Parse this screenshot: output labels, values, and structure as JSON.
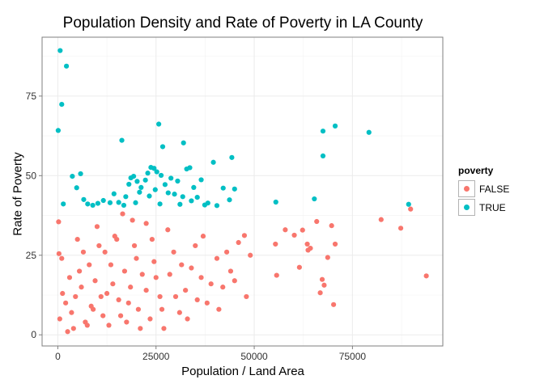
{
  "chart_data": {
    "type": "scatter",
    "title": "Population Density and Rate of Poverty in LA County",
    "xlabel": "Population / Land Area",
    "ylabel": "Rate of Poverty",
    "xlim": [
      -4000,
      98000
    ],
    "ylim": [
      -3.5,
      93.5
    ],
    "x_ticks": [
      0,
      25000,
      50000,
      75000
    ],
    "x_tick_labels": [
      "0",
      "25000",
      "50000",
      "75000"
    ],
    "y_ticks": [
      0,
      25,
      50,
      75
    ],
    "y_tick_labels": [
      "0",
      "25",
      "50",
      "75"
    ],
    "grid": true,
    "legend": {
      "title": "poverty",
      "position": "right"
    },
    "series": [
      {
        "name": "FALSE",
        "color": "#F8766D",
        "points": [
          [
            93800,
            18.5
          ],
          [
            89800,
            39.5
          ],
          [
            87300,
            33.5
          ],
          [
            82300,
            36.2
          ],
          [
            70600,
            28.5
          ],
          [
            70200,
            9.5
          ],
          [
            69700,
            34.3
          ],
          [
            68700,
            24.3
          ],
          [
            67800,
            15.6
          ],
          [
            67300,
            17.4
          ],
          [
            66800,
            13.2
          ],
          [
            65900,
            35.6
          ],
          [
            64300,
            27.2
          ],
          [
            63700,
            26.6
          ],
          [
            63500,
            28.5
          ],
          [
            62300,
            32.9
          ],
          [
            61500,
            21.2
          ],
          [
            60200,
            31.3
          ],
          [
            57900,
            33
          ],
          [
            55700,
            18.7
          ],
          [
            55400,
            28.5
          ],
          [
            49000,
            25
          ],
          [
            47500,
            31.2
          ],
          [
            46000,
            29
          ],
          [
            44000,
            20
          ],
          [
            42000,
            15
          ],
          [
            40500,
            24
          ],
          [
            38000,
            10
          ],
          [
            36500,
            18
          ],
          [
            35000,
            28
          ],
          [
            33000,
            5
          ],
          [
            31500,
            22
          ],
          [
            30000,
            12
          ],
          [
            28000,
            33
          ],
          [
            26500,
            8
          ],
          [
            25000,
            18
          ],
          [
            24000,
            30
          ],
          [
            22500,
            14
          ],
          [
            21000,
            2
          ],
          [
            20000,
            24
          ],
          [
            19000,
            36
          ],
          [
            18000,
            10
          ],
          [
            17000,
            20
          ],
          [
            16000,
            6
          ],
          [
            15000,
            30
          ],
          [
            14000,
            16
          ],
          [
            13000,
            3
          ],
          [
            12000,
            26
          ],
          [
            11000,
            12
          ],
          [
            10000,
            34
          ],
          [
            9000,
            8
          ],
          [
            8000,
            22
          ],
          [
            7000,
            4
          ],
          [
            6000,
            15
          ],
          [
            5000,
            30
          ],
          [
            4000,
            2
          ],
          [
            3000,
            18
          ],
          [
            2000,
            10
          ],
          [
            1000,
            24
          ],
          [
            500,
            5
          ],
          [
            200,
            35.5
          ],
          [
            300,
            25.5
          ],
          [
            1200,
            13
          ],
          [
            2500,
            1
          ],
          [
            3500,
            7
          ],
          [
            4500,
            12
          ],
          [
            5500,
            20
          ],
          [
            6500,
            26
          ],
          [
            7500,
            3
          ],
          [
            8500,
            9
          ],
          [
            9500,
            17
          ],
          [
            10500,
            28
          ],
          [
            11500,
            6
          ],
          [
            12500,
            13
          ],
          [
            13500,
            22
          ],
          [
            14500,
            31
          ],
          [
            15500,
            11
          ],
          [
            16500,
            38
          ],
          [
            17500,
            4
          ],
          [
            18500,
            15
          ],
          [
            19500,
            28
          ],
          [
            20500,
            8
          ],
          [
            21500,
            19
          ],
          [
            22500,
            35
          ],
          [
            23500,
            5
          ],
          [
            24500,
            23
          ],
          [
            26000,
            12
          ],
          [
            27000,
            2
          ],
          [
            28500,
            19
          ],
          [
            29500,
            26
          ],
          [
            31000,
            7
          ],
          [
            32500,
            14
          ],
          [
            34000,
            21
          ],
          [
            35500,
            11
          ],
          [
            37000,
            31
          ],
          [
            39000,
            16
          ],
          [
            41000,
            8
          ],
          [
            43000,
            26
          ],
          [
            45000,
            17
          ],
          [
            48000,
            12
          ]
        ]
      },
      {
        "name": "TRUE",
        "color": "#00BFC4",
        "points": [
          [
            600,
            89.3
          ],
          [
            2200,
            84.4
          ],
          [
            1000,
            72.4
          ],
          [
            100,
            64.2
          ],
          [
            25700,
            66.2
          ],
          [
            26700,
            59.1
          ],
          [
            32000,
            60.3
          ],
          [
            16300,
            61.1
          ],
          [
            70600,
            65.6
          ],
          [
            67500,
            64
          ],
          [
            79200,
            63.6
          ],
          [
            67500,
            56.2
          ],
          [
            44300,
            55.7
          ],
          [
            39600,
            54.2
          ],
          [
            5800,
            50.6
          ],
          [
            3700,
            49.8
          ],
          [
            4800,
            46.2
          ],
          [
            1400,
            41.1
          ],
          [
            8900,
            40.7
          ],
          [
            10200,
            41.3
          ],
          [
            13300,
            41.5
          ],
          [
            15500,
            41.6
          ],
          [
            17300,
            43.4
          ],
          [
            18100,
            47.3
          ],
          [
            18600,
            49.3
          ],
          [
            19300,
            49.8
          ],
          [
            20200,
            48.2
          ],
          [
            21200,
            46.3
          ],
          [
            22300,
            48.6
          ],
          [
            22900,
            50.8
          ],
          [
            23700,
            52.6
          ],
          [
            24500,
            52.3
          ],
          [
            25200,
            51.2
          ],
          [
            26300,
            50.1
          ],
          [
            27300,
            47.2
          ],
          [
            28800,
            49.2
          ],
          [
            29700,
            44.2
          ],
          [
            30500,
            48.3
          ],
          [
            31800,
            43.4
          ],
          [
            32800,
            52.1
          ],
          [
            33600,
            52.5
          ],
          [
            34600,
            46.3
          ],
          [
            35500,
            43.2
          ],
          [
            36500,
            48.7
          ],
          [
            38200,
            41.4
          ],
          [
            42100,
            46.1
          ],
          [
            45000,
            45.8
          ],
          [
            43700,
            42.4
          ],
          [
            55500,
            41.7
          ],
          [
            65300,
            42.7
          ],
          [
            89300,
            41
          ],
          [
            6600,
            42.5
          ],
          [
            7600,
            41.1
          ],
          [
            11600,
            42.2
          ],
          [
            14300,
            44.3
          ],
          [
            16800,
            40.7
          ],
          [
            20800,
            44.8
          ],
          [
            23300,
            43.6
          ],
          [
            26000,
            41.1
          ],
          [
            28100,
            44.6
          ],
          [
            31100,
            41
          ],
          [
            34000,
            42.1
          ],
          [
            37400,
            40.8
          ],
          [
            40500,
            40.6
          ],
          [
            24800,
            45.6
          ],
          [
            19800,
            41.5
          ]
        ]
      }
    ]
  }
}
